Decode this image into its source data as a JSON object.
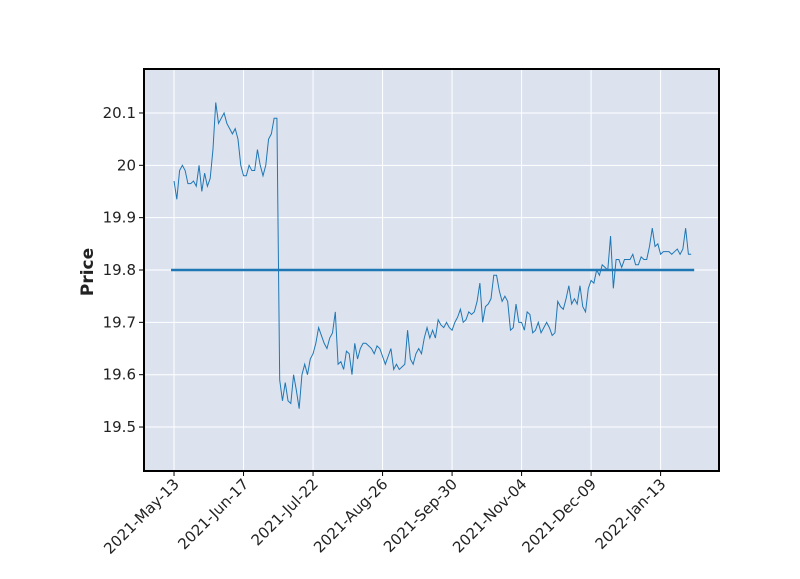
{
  "chart_data": {
    "type": "line",
    "ylabel": "Price",
    "x": [
      0,
      1,
      2,
      3,
      4,
      5,
      6,
      7,
      8,
      9,
      10,
      11,
      12,
      13,
      14,
      15,
      16,
      17,
      18,
      19,
      20,
      21,
      22,
      23,
      24,
      25,
      26,
      27,
      28,
      29,
      30,
      31,
      32,
      33,
      34,
      35,
      36,
      37,
      38,
      39,
      40,
      41,
      42,
      43,
      44,
      45,
      46,
      47,
      48,
      49,
      50,
      51,
      52,
      53,
      54,
      55,
      56,
      57,
      58,
      59,
      60,
      61,
      62,
      63,
      64,
      65,
      66,
      67,
      68,
      69,
      70,
      71,
      72,
      73,
      74,
      75,
      76,
      77,
      78,
      79,
      80,
      81,
      82,
      83,
      84,
      85,
      86,
      87,
      88,
      89,
      90,
      91,
      92,
      93,
      94,
      95,
      96,
      97,
      98,
      99,
      100,
      101,
      102,
      103,
      104,
      105,
      106,
      107,
      108,
      109,
      110,
      111,
      112,
      113,
      114,
      115,
      116,
      117,
      118,
      119,
      120,
      121,
      122,
      123,
      124,
      125,
      126,
      127,
      128,
      129,
      130,
      131,
      132,
      133,
      134,
      135,
      136,
      137,
      138,
      139,
      140,
      141,
      142,
      143,
      144,
      145,
      146,
      147,
      148,
      149,
      150,
      151,
      152,
      153,
      154,
      155,
      156,
      157,
      158,
      159,
      160,
      161,
      162,
      163,
      164,
      165,
      166,
      167,
      168,
      169,
      170,
      171,
      172,
      173,
      174,
      175,
      176,
      177,
      178,
      179,
      180,
      181,
      182,
      183,
      184,
      185,
      186
    ],
    "series": [
      {
        "color": "#1f77b4",
        "values": [
          19.97,
          19.935,
          19.99,
          20.0,
          19.99,
          19.965,
          19.965,
          19.97,
          19.96,
          20.0,
          19.95,
          19.985,
          19.96,
          19.975,
          20.03,
          20.12,
          20.08,
          20.09,
          20.1,
          20.08,
          20.07,
          20.06,
          20.07,
          20.05,
          20.0,
          19.98,
          19.98,
          20.0,
          19.99,
          19.99,
          20.03,
          20.0,
          19.98,
          20.0,
          20.05,
          20.06,
          20.09,
          20.09,
          19.59,
          19.55,
          19.585,
          19.55,
          19.545,
          19.6,
          19.57,
          19.535,
          19.6,
          19.62,
          19.6,
          19.63,
          19.64,
          19.66,
          19.69,
          19.675,
          19.66,
          19.65,
          19.67,
          19.68,
          19.72,
          19.62,
          19.625,
          19.61,
          19.645,
          19.64,
          19.6,
          19.66,
          19.63,
          19.65,
          19.66,
          19.66,
          19.655,
          19.65,
          19.64,
          19.655,
          19.65,
          19.635,
          19.62,
          19.635,
          19.65,
          19.61,
          19.62,
          19.61,
          19.615,
          19.62,
          19.685,
          19.63,
          19.62,
          19.64,
          19.65,
          19.64,
          19.67,
          19.69,
          19.67,
          19.685,
          19.67,
          19.705,
          19.695,
          19.69,
          19.7,
          19.69,
          19.685,
          19.7,
          19.71,
          19.725,
          19.7,
          19.705,
          19.72,
          19.715,
          19.72,
          19.74,
          19.775,
          19.7,
          19.73,
          19.735,
          19.745,
          19.79,
          19.79,
          19.76,
          19.74,
          19.75,
          19.74,
          19.685,
          19.69,
          19.735,
          19.7,
          19.7,
          19.685,
          19.72,
          19.715,
          19.68,
          19.685,
          19.7,
          19.68,
          19.69,
          19.7,
          19.69,
          19.675,
          19.68,
          19.74,
          19.73,
          19.725,
          19.745,
          19.77,
          19.735,
          19.745,
          19.735,
          19.77,
          19.73,
          19.72,
          19.765,
          19.78,
          19.775,
          19.8,
          19.79,
          19.81,
          19.805,
          19.8,
          19.865,
          19.765,
          19.82,
          19.82,
          19.805,
          19.82,
          19.82,
          19.82,
          19.83,
          19.81,
          19.81,
          19.825,
          19.82,
          19.82,
          19.845,
          19.88,
          19.845,
          19.85,
          19.83,
          19.835,
          19.835,
          19.835,
          19.83,
          19.835,
          19.84,
          19.83,
          19.84,
          19.88,
          19.83,
          19.83
        ]
      }
    ],
    "hline": {
      "value": 19.8,
      "color": "#1f77b4"
    },
    "xlim": [
      -10.8,
      196
    ],
    "xticks": [
      {
        "value": 0,
        "label": "2021-May-13"
      },
      {
        "value": 25,
        "label": "2021-Jun-17"
      },
      {
        "value": 50,
        "label": "2021-Jul-22"
      },
      {
        "value": 75,
        "label": "2021-Aug-26"
      },
      {
        "value": 100,
        "label": "2021-Sep-30"
      },
      {
        "value": 125,
        "label": "2021-Nov-04"
      },
      {
        "value": 150,
        "label": "2021-Dec-09"
      },
      {
        "value": 175,
        "label": "2022-Jan-13"
      }
    ],
    "ylim": [
      19.416,
      20.184
    ],
    "yticks": [
      19.5,
      19.6,
      19.7,
      19.8,
      19.9,
      20.0,
      20.1
    ],
    "grid": true,
    "background": "#dce3ef"
  }
}
